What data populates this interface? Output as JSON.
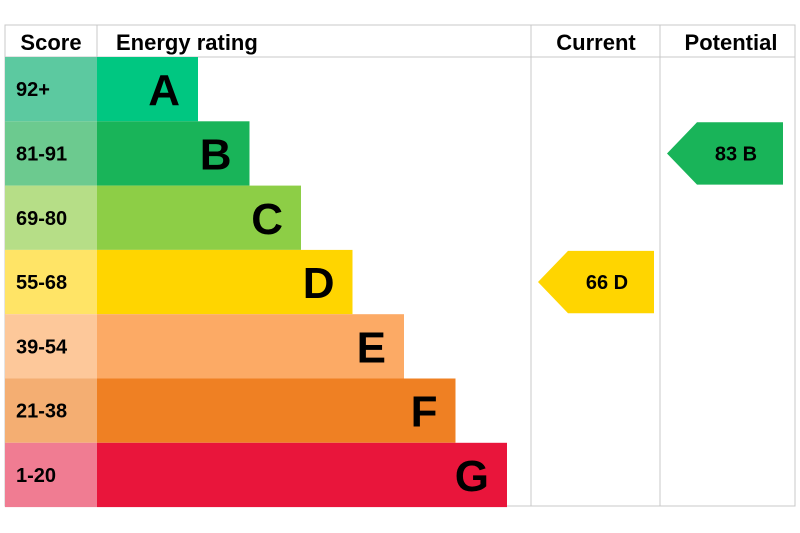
{
  "chart_data": {
    "type": "table",
    "headers": {
      "score": "Score",
      "rating": "Energy rating",
      "current": "Current",
      "potential": "Potential"
    },
    "bands": [
      {
        "letter": "A",
        "range": "92+",
        "color": "#00c781",
        "score_color": "#5cc9a0"
      },
      {
        "letter": "B",
        "range": "81-91",
        "color": "#19b459",
        "score_color": "#6cca8f"
      },
      {
        "letter": "C",
        "range": "69-80",
        "color": "#8dce46",
        "score_color": "#b6de87"
      },
      {
        "letter": "D",
        "range": "55-68",
        "color": "#ffd500",
        "score_color": "#ffe466"
      },
      {
        "letter": "E",
        "range": "39-54",
        "color": "#fcaa65",
        "score_color": "#fdc89a"
      },
      {
        "letter": "F",
        "range": "21-38",
        "color": "#ef8023",
        "score_color": "#f4ae72"
      },
      {
        "letter": "G",
        "range": "1-20",
        "color": "#e9153b",
        "score_color": "#f07c92"
      }
    ],
    "current": {
      "value": 66,
      "letter": "D",
      "label": "66  D",
      "color": "#ffd500"
    },
    "potential": {
      "value": 83,
      "letter": "B",
      "label": "83  B",
      "color": "#19b459"
    }
  }
}
